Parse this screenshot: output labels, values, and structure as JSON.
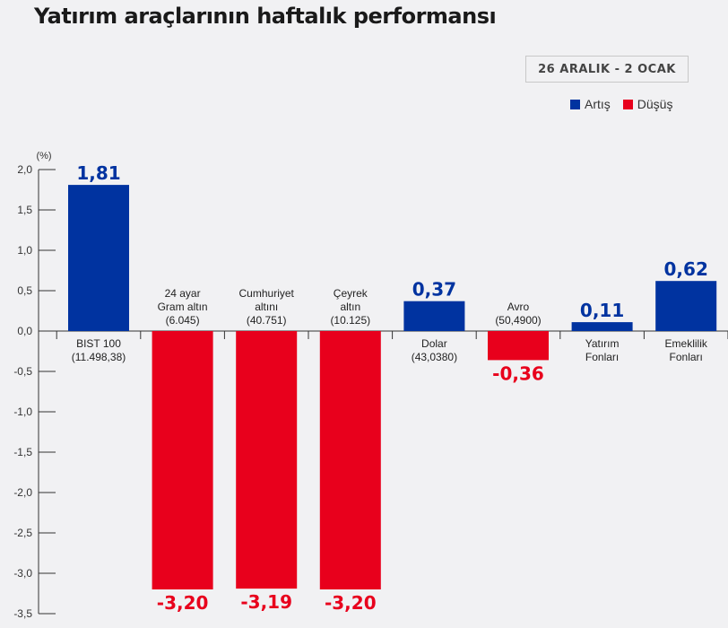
{
  "title": "Yatırım araçlarının haftalık performansı",
  "date_range": "26 ARALIK - 2 OCAK",
  "colors": {
    "increase": "#0033a0",
    "decrease": "#e8001c"
  },
  "chart_data": {
    "type": "bar",
    "ylabel": "(%)",
    "ylim": [
      -3.5,
      2.0
    ],
    "yticks": [
      "2,0",
      "1,5",
      "1,0",
      "0,5",
      "0,0",
      "-0,5",
      "-1,0",
      "-1,5",
      "-2,0",
      "-2,5",
      "-3,0",
      "-3,5"
    ],
    "ytick_values": [
      2.0,
      1.5,
      1.0,
      0.5,
      0.0,
      -0.5,
      -1.0,
      -1.5,
      -2.0,
      -2.5,
      -3.0,
      -3.5
    ],
    "legend": [
      {
        "name": "Artış",
        "color": "#0033a0"
      },
      {
        "name": "Düşüş",
        "color": "#e8001c"
      }
    ],
    "legend_position": "top-right",
    "categories": [
      [
        "BIST 100",
        "(11.498,38)"
      ],
      [
        "24 ayar",
        "Gram altın",
        "(6.045)"
      ],
      [
        "Cumhuriyet",
        "altını",
        "(40.751)"
      ],
      [
        "Çeyrek",
        "altın",
        "(10.125)"
      ],
      [
        "Dolar",
        "(43,0380)"
      ],
      [
        "Avro",
        "(50,4900)"
      ],
      [
        "Yatırım",
        "Fonları"
      ],
      [
        "Emeklilik",
        "Fonları"
      ]
    ],
    "values": [
      1.81,
      -3.2,
      -3.19,
      -3.2,
      0.37,
      -0.36,
      0.11,
      0.62
    ],
    "value_labels": [
      "1,81",
      "-3,20",
      "-3,19",
      "-3,20",
      "0,37",
      "-0,36",
      "0,11",
      "0,62"
    ]
  }
}
